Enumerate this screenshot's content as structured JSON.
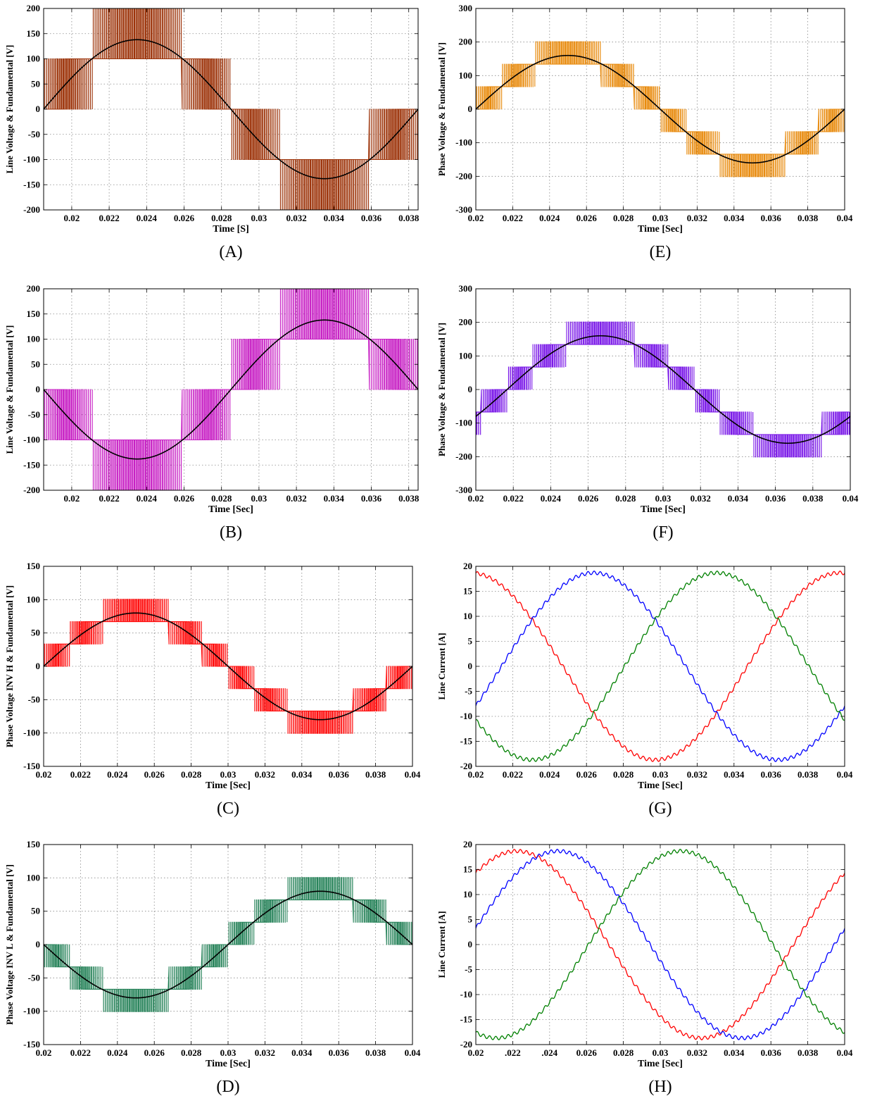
{
  "chart_data": [
    {
      "id": "A",
      "type": "line",
      "caption": "(A)",
      "xlabel": "Time [S]",
      "ylabel": "Line Voltage & Fundamental [V]",
      "xlim": [
        0.0185,
        0.0385
      ],
      "ylim": [
        -200,
        200
      ],
      "xticks": [
        0.02,
        0.022,
        0.024,
        0.026,
        0.028,
        0.03,
        0.032,
        0.034,
        0.036,
        0.038
      ],
      "xtick_labels": [
        "0.02",
        "0.022",
        "0.024",
        "0.026",
        "0.028",
        "0.03",
        "0.032",
        "0.034",
        "0.036",
        "0.038"
      ],
      "yticks": [
        -200,
        -150,
        -100,
        -50,
        0,
        50,
        100,
        150,
        200
      ],
      "ytick_labels": [
        "-200",
        "-150",
        "-100",
        "-50",
        "0",
        "50",
        "100",
        "150",
        "200"
      ],
      "grid": true,
      "series": [
        {
          "kind": "pwm",
          "color": "#9c3208",
          "step": 100,
          "levels": 2,
          "amplitude": 138,
          "phase": 0,
          "frequency": 50,
          "x0": 0.0185
        },
        {
          "kind": "fundamental",
          "color": "#000000",
          "amplitude": 138,
          "phase": 0,
          "frequency": 50,
          "x0": 0.0185
        }
      ]
    },
    {
      "id": "E",
      "type": "line",
      "caption": "(E)",
      "xlabel": "Time [Sec]",
      "ylabel": "Phase Voltage & Fundamental [V]",
      "xlim": [
        0.02,
        0.04
      ],
      "ylim": [
        -300,
        300
      ],
      "xticks": [
        0.02,
        0.022,
        0.024,
        0.026,
        0.028,
        0.03,
        0.032,
        0.034,
        0.036,
        0.038,
        0.04
      ],
      "xtick_labels": [
        "0.02",
        "0.022",
        "0.024",
        "0.026",
        "0.028",
        "0.03",
        "0.032",
        "0.034",
        "0.036",
        "0.038",
        "0.04"
      ],
      "yticks": [
        -300,
        -200,
        -100,
        0,
        100,
        200,
        300
      ],
      "ytick_labels": [
        "-300",
        "-200",
        "-100",
        "0",
        "100",
        "200",
        "300"
      ],
      "grid": true,
      "series": [
        {
          "kind": "pwm",
          "color": "#e88a0c",
          "step": 67,
          "levels": 4,
          "amplitude": 160,
          "phase": 0,
          "frequency": 50,
          "x0": 0.02
        },
        {
          "kind": "fundamental",
          "color": "#000000",
          "amplitude": 160,
          "phase": 0,
          "frequency": 50,
          "x0": 0.02
        }
      ]
    },
    {
      "id": "B",
      "type": "line",
      "caption": "(B)",
      "xlabel": "Time [Sec]",
      "ylabel": "Line Voltage & Fundamental [V]",
      "xlim": [
        0.0185,
        0.0385
      ],
      "ylim": [
        -200,
        200
      ],
      "xticks": [
        0.02,
        0.022,
        0.024,
        0.026,
        0.028,
        0.03,
        0.032,
        0.034,
        0.036,
        0.038
      ],
      "xtick_labels": [
        "0.02",
        "0.022",
        "0.024",
        "0.026",
        "0.028",
        "0.03",
        "0.032",
        "0.034",
        "0.036",
        "0.038"
      ],
      "yticks": [
        -200,
        -150,
        -100,
        -50,
        0,
        50,
        100,
        150,
        200
      ],
      "ytick_labels": [
        "-200",
        "-150",
        "-100",
        "-50",
        "0",
        "50",
        "100",
        "150",
        "200"
      ],
      "grid": true,
      "series": [
        {
          "kind": "pwm",
          "color": "#c71fc4",
          "step": 100,
          "levels": 2,
          "amplitude": 138,
          "phase": 180,
          "frequency": 50,
          "x0": 0.0185
        },
        {
          "kind": "fundamental",
          "color": "#000000",
          "amplitude": 138,
          "phase": 180,
          "frequency": 50,
          "x0": 0.0185
        }
      ]
    },
    {
      "id": "F",
      "type": "line",
      "caption": "(F)",
      "xlabel": "Time [Sec]",
      "ylabel": "Phase Voltage & Fundamental [V]",
      "xlim": [
        0.02,
        0.04
      ],
      "ylim": [
        -300,
        300
      ],
      "xticks": [
        0.02,
        0.022,
        0.024,
        0.026,
        0.028,
        0.03,
        0.032,
        0.034,
        0.036,
        0.038,
        0.04
      ],
      "xtick_labels": [
        "0.02",
        "0.022",
        "0.024",
        "0.026",
        "0.028",
        "0.03",
        "0.032",
        "0.034",
        "0.036",
        "0.038",
        "0.04"
      ],
      "yticks": [
        -300,
        -200,
        -100,
        0,
        100,
        200,
        300
      ],
      "ytick_labels": [
        "-300",
        "-200",
        "-100",
        "0",
        "100",
        "200",
        "300"
      ],
      "grid": true,
      "series": [
        {
          "kind": "pwm",
          "color": "#7a18e8",
          "step": 67,
          "levels": 4,
          "amplitude": 160,
          "phase": -30,
          "frequency": 50,
          "x0": 0.02
        },
        {
          "kind": "fundamental",
          "color": "#000000",
          "amplitude": 160,
          "phase": -30,
          "frequency": 50,
          "x0": 0.02
        }
      ]
    },
    {
      "id": "C",
      "type": "line",
      "caption": "(C)",
      "xlabel": "Time [Sec]",
      "ylabel": "Phase Voltage INV H & Fundamental [V]",
      "xlim": [
        0.02,
        0.04
      ],
      "ylim": [
        -150,
        150
      ],
      "xticks": [
        0.02,
        0.022,
        0.024,
        0.026,
        0.028,
        0.03,
        0.032,
        0.034,
        0.036,
        0.038,
        0.04
      ],
      "xtick_labels": [
        "0.02",
        "0.022",
        "0.024",
        "0.026",
        "0.028",
        "0.03",
        "0.032",
        "0.034",
        "0.036",
        "0.038",
        "0.04"
      ],
      "yticks": [
        -150,
        -100,
        -50,
        0,
        50,
        100,
        150
      ],
      "ytick_labels": [
        "-150",
        "-100",
        "-50",
        "0",
        "50",
        "100",
        "150"
      ],
      "grid": true,
      "series": [
        {
          "kind": "pwm",
          "color": "#ff0a0a",
          "step": 33.5,
          "levels": 4,
          "amplitude": 80,
          "phase": 0,
          "frequency": 50,
          "x0": 0.02
        },
        {
          "kind": "fundamental",
          "color": "#000000",
          "amplitude": 80,
          "phase": 0,
          "frequency": 50,
          "x0": 0.02
        }
      ]
    },
    {
      "id": "G",
      "type": "line",
      "caption": "(G)",
      "xlabel": "Time [Sec]",
      "ylabel": "Line Current [A]",
      "xlim": [
        0.02,
        0.04
      ],
      "ylim": [
        -20,
        20
      ],
      "xticks": [
        0.02,
        0.022,
        0.024,
        0.026,
        0.028,
        0.03,
        0.032,
        0.034,
        0.036,
        0.038,
        0.04
      ],
      "xtick_labels": [
        "0.02",
        "0.022",
        "0.024",
        "0.026",
        "0.028",
        "0.03",
        "0.032",
        "0.034",
        "0.036",
        "0.038",
        "0.04"
      ],
      "yticks": [
        -20,
        -15,
        -10,
        -5,
        0,
        5,
        10,
        15,
        20
      ],
      "ytick_labels": [
        "-20",
        "-15",
        "-10",
        "-5",
        "0",
        "5",
        "10",
        "15",
        "20"
      ],
      "grid": true,
      "series": [
        {
          "kind": "sine",
          "color": "#ff0000",
          "amplitude": 18.7,
          "phase": 95,
          "frequency": 50,
          "x0": 0.02
        },
        {
          "kind": "sine",
          "color": "#0000ff",
          "amplitude": 18.7,
          "phase": -25,
          "frequency": 50,
          "x0": 0.02
        },
        {
          "kind": "sine",
          "color": "#008000",
          "amplitude": 18.7,
          "phase": 215,
          "frequency": 50,
          "x0": 0.02
        }
      ]
    },
    {
      "id": "D",
      "type": "line",
      "caption": "(D)",
      "xlabel": "Time [Sec]",
      "ylabel": "Phase Voltage INV L & Fundamental [V]",
      "xlim": [
        0.02,
        0.04
      ],
      "ylim": [
        -150,
        150
      ],
      "xticks": [
        0.02,
        0.022,
        0.024,
        0.026,
        0.028,
        0.03,
        0.032,
        0.034,
        0.036,
        0.038,
        0.04
      ],
      "xtick_labels": [
        "0.02",
        "0.022",
        "0.024",
        "0.026",
        "0.028",
        "0.03",
        "0.032",
        "0.034",
        "0.036",
        "0.038",
        "0.04"
      ],
      "yticks": [
        -150,
        -100,
        -50,
        0,
        50,
        100,
        150
      ],
      "ytick_labels": [
        "-150",
        "-100",
        "-50",
        "0",
        "50",
        "100",
        "150"
      ],
      "grid": true,
      "series": [
        {
          "kind": "pwm",
          "color": "#27835a",
          "step": 33.5,
          "levels": 4,
          "amplitude": 80,
          "phase": 180,
          "frequency": 50,
          "x0": 0.02
        },
        {
          "kind": "fundamental",
          "color": "#000000",
          "amplitude": 80,
          "phase": 180,
          "frequency": 50,
          "x0": 0.02
        }
      ]
    },
    {
      "id": "H",
      "type": "line",
      "caption": "(H)",
      "xlabel": "Time [Sec]",
      "ylabel": "Line Current [A]",
      "xlim": [
        0.02,
        0.04
      ],
      "ylim": [
        -20,
        20
      ],
      "xticks": [
        0.02,
        0.022,
        0.024,
        0.026,
        0.028,
        0.03,
        0.032,
        0.034,
        0.036,
        0.038,
        0.04
      ],
      "xtick_labels": [
        "0.02",
        ".022",
        ".024",
        "0.026",
        "0.028",
        "0.03",
        "0.032",
        "0.034",
        "0.036",
        "0.038",
        "0.04"
      ],
      "yticks": [
        -20,
        -15,
        -10,
        -5,
        0,
        5,
        10,
        15,
        20
      ],
      "ytick_labels": [
        "-20",
        "-15",
        "-10",
        "-5",
        "0",
        "5",
        "10",
        "15",
        "20"
      ],
      "grid": true,
      "series": [
        {
          "kind": "sine",
          "color": "#ff0000",
          "amplitude": 18.7,
          "phase": 50,
          "frequency": 50,
          "x0": 0.02
        },
        {
          "kind": "sine",
          "color": "#0000ff",
          "amplitude": 18.7,
          "phase": 10,
          "frequency": 50,
          "x0": 0.02
        },
        {
          "kind": "sine",
          "color": "#008000",
          "amplitude": 18.7,
          "phase": 250,
          "frequency": 50,
          "x0": 0.02
        }
      ]
    }
  ]
}
